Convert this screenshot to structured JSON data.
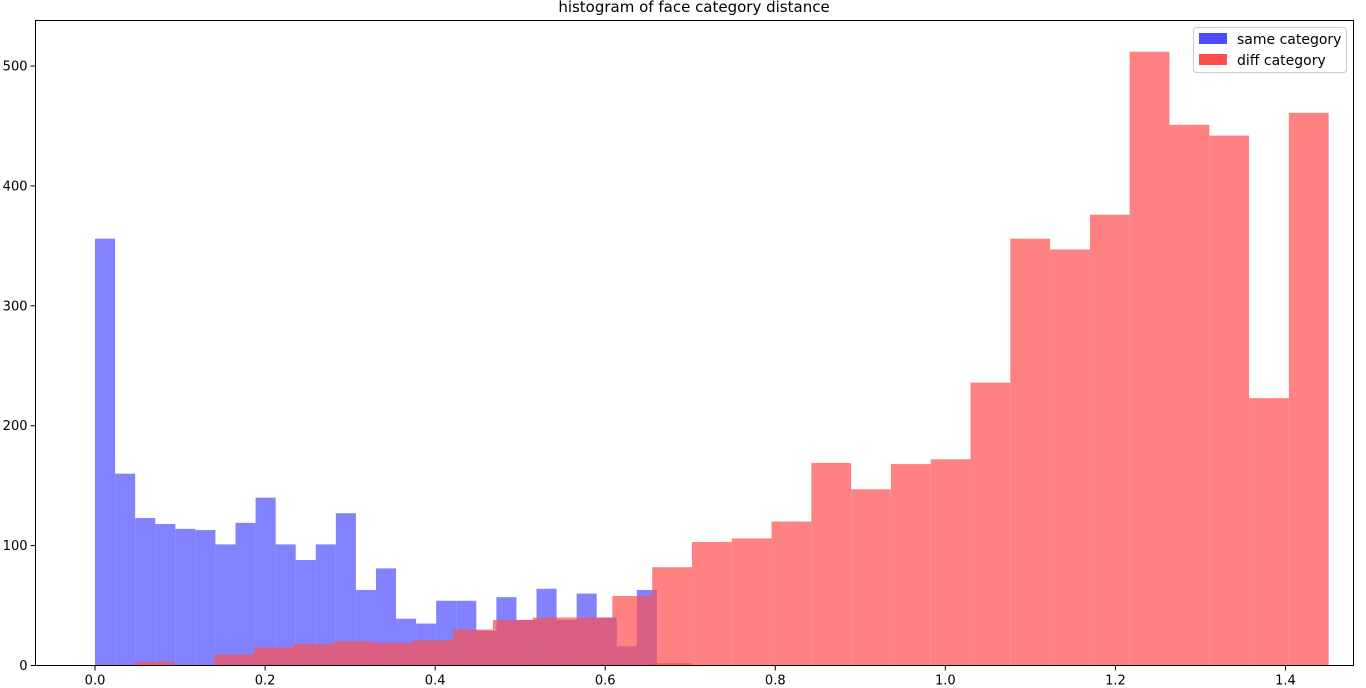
{
  "chart_data": {
    "type": "bar",
    "title": "histogram of face category distance",
    "xlabel": "",
    "ylabel": "",
    "xlim": [
      -0.07,
      1.48
    ],
    "ylim": [
      0,
      538
    ],
    "xticks": [
      0.0,
      0.2,
      0.4,
      0.6,
      0.8,
      1.0,
      1.2,
      1.4
    ],
    "xtick_labels": [
      "0.0",
      "0.2",
      "0.4",
      "0.6",
      "0.8",
      "1.0",
      "1.2",
      "1.4"
    ],
    "yticks": [
      0,
      100,
      200,
      300,
      400,
      500
    ],
    "ytick_labels": [
      "0",
      "100",
      "200",
      "300",
      "400",
      "500"
    ],
    "grid": false,
    "legend_position": "top-right",
    "series": [
      {
        "name": "same category",
        "color": "#4d4dff",
        "bin_start": 0.0,
        "bin_width": 0.0236,
        "values": [
          356,
          160,
          123,
          118,
          114,
          113,
          101,
          119,
          140,
          101,
          88,
          101,
          127,
          63,
          81,
          39,
          35,
          54,
          54,
          29,
          57,
          38,
          64,
          38,
          60,
          40,
          16,
          63
        ]
      },
      {
        "name": "diff category",
        "color": "#ff4d4d",
        "bin_start": 0.0,
        "bin_width": 0.0468,
        "values": [
          0,
          3,
          0,
          9,
          15,
          18,
          20,
          19,
          21,
          30,
          38,
          40,
          40,
          58,
          82,
          103,
          106,
          120,
          169,
          147,
          168,
          172,
          236,
          356,
          347,
          376,
          512,
          451,
          442,
          223,
          461
        ],
        "extra_bins": [
          {
            "x0": 0.655,
            "x1": 0.702,
            "value": 2
          }
        ]
      }
    ]
  }
}
